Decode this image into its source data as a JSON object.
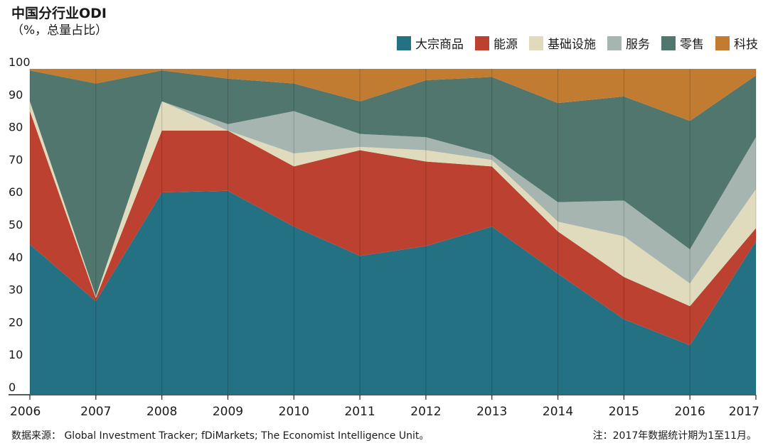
{
  "chart_data": {
    "type": "area",
    "stacked": true,
    "title": "中国分行业ODI",
    "subtitle": "（%，总量占比）",
    "x": [
      2006,
      2007,
      2008,
      2009,
      2010,
      2011,
      2012,
      2013,
      2014,
      2015,
      2016,
      2017
    ],
    "ylim": [
      0,
      100
    ],
    "yticks": [
      0,
      10,
      20,
      30,
      40,
      50,
      60,
      70,
      80,
      90,
      100
    ],
    "legend_position": "top-right",
    "series": [
      {
        "name": "大宗商品",
        "color": "#237182",
        "values": [
          46,
          28.5,
          62,
          62.5,
          51.5,
          42.5,
          45.5,
          51.5,
          37,
          23,
          15,
          47
        ]
      },
      {
        "name": "能源",
        "color": "#bc4130",
        "values": [
          41,
          1,
          19,
          18.5,
          18.5,
          32.5,
          26,
          18.5,
          13,
          13,
          12,
          4
        ]
      },
      {
        "name": "基础设施",
        "color": "#e1dbbe",
        "values": [
          3,
          0.5,
          9,
          0,
          4,
          1,
          3.5,
          2,
          3,
          12.5,
          7,
          12
        ]
      },
      {
        "name": "服务",
        "color": "#a6b5af",
        "values": [
          0,
          0,
          0,
          2,
          13,
          4,
          4,
          1.5,
          6,
          11,
          10.5,
          16
        ]
      },
      {
        "name": "零售",
        "color": "#50766d",
        "values": [
          9.5,
          65.5,
          9.5,
          14,
          8.5,
          10,
          17.5,
          24,
          30.5,
          32,
          39.5,
          19
        ]
      },
      {
        "name": "科技",
        "color": "#c17c31",
        "values": [
          0.5,
          4.5,
          0.5,
          3,
          4.5,
          10,
          3.5,
          2.5,
          10.5,
          8.5,
          16,
          2
        ]
      }
    ]
  },
  "source": "数据来源：  Global Investment Tracker; fDiMarkets; The Economist Intelligence Unit。",
  "note": "注：2017年数据统计期为1至11月。"
}
